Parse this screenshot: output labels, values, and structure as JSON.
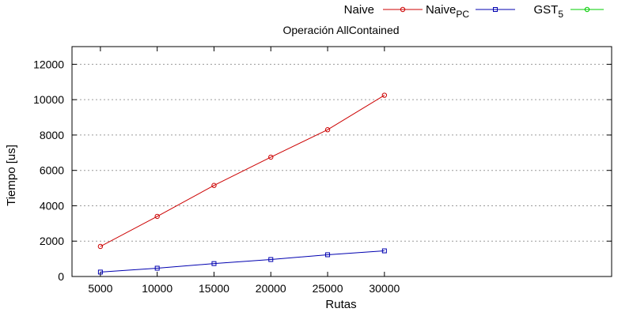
{
  "chart_data": {
    "type": "line",
    "title": "Operación AllContained",
    "xlabel": "Rutas",
    "ylabel": "Tiempo [us]",
    "xlim": [
      2500,
      50000
    ],
    "ylim": [
      0,
      13000
    ],
    "x_ticks": [
      5000,
      10000,
      15000,
      20000,
      25000,
      30000
    ],
    "y_ticks": [
      0,
      2000,
      4000,
      6000,
      8000,
      10000,
      12000
    ],
    "grid": "horizontal dashed",
    "legend_position": "top-right",
    "series": [
      {
        "name": "Naive",
        "color": "#cc0000",
        "marker": "circle",
        "x": [
          5000,
          10000,
          15000,
          20000,
          25000,
          30000
        ],
        "y": [
          1700,
          3400,
          5150,
          6750,
          8300,
          10250
        ]
      },
      {
        "name": "Naive",
        "name_subscript": "PC",
        "color": "#0000b0",
        "marker": "square",
        "x": [
          5000,
          10000,
          15000,
          20000,
          25000,
          30000
        ],
        "y": [
          250,
          470,
          730,
          960,
          1230,
          1450
        ]
      },
      {
        "name": "GST",
        "name_subscript": "5",
        "color": "#00cc00",
        "marker": "circle",
        "x": [],
        "y": []
      }
    ]
  }
}
